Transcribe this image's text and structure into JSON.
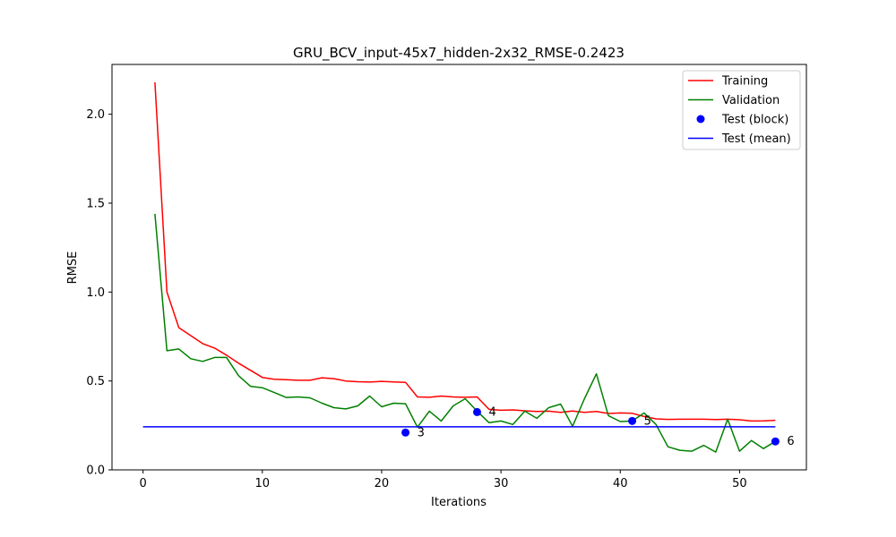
{
  "chart_data": {
    "type": "line",
    "title": "GRU_BCV_input-45x7_hidden-2x32_RMSE-0.2423",
    "xlabel": "Iterations",
    "ylabel": "RMSE",
    "xlim": [
      -2.6,
      55.6
    ],
    "ylim": [
      0,
      2.28
    ],
    "xticks": [
      0,
      10,
      20,
      30,
      40,
      50
    ],
    "xtick_labels": [
      "0",
      "10",
      "20",
      "30",
      "40",
      "50"
    ],
    "yticks": [
      0.0,
      0.5,
      1.0,
      1.5,
      2.0
    ],
    "ytick_labels": [
      "0.0",
      "0.5",
      "1.0",
      "1.5",
      "2.0"
    ],
    "grid": false,
    "legend_position": "top-right",
    "series": [
      {
        "name": "Training",
        "color": "#ff0000",
        "kind": "line",
        "x": [
          1,
          2,
          3,
          4,
          5,
          6,
          7,
          8,
          9,
          10,
          11,
          12,
          13,
          14,
          15,
          16,
          17,
          18,
          19,
          20,
          21,
          22,
          23,
          24,
          25,
          26,
          27,
          28,
          29,
          30,
          31,
          32,
          33,
          34,
          35,
          36,
          37,
          38,
          39,
          40,
          41,
          42,
          43,
          44,
          45,
          46,
          47,
          48,
          49,
          50,
          51,
          52,
          53
        ],
        "y": [
          2.18,
          1.0,
          0.8,
          0.755,
          0.71,
          0.685,
          0.645,
          0.6,
          0.56,
          0.52,
          0.51,
          0.507,
          0.504,
          0.504,
          0.518,
          0.513,
          0.5,
          0.496,
          0.494,
          0.498,
          0.495,
          0.492,
          0.41,
          0.408,
          0.415,
          0.41,
          0.408,
          0.41,
          0.34,
          0.335,
          0.337,
          0.332,
          0.328,
          0.33,
          0.323,
          0.331,
          0.323,
          0.328,
          0.317,
          0.32,
          0.318,
          0.3,
          0.287,
          0.284,
          0.285,
          0.285,
          0.285,
          0.283,
          0.285,
          0.282,
          0.275,
          0.276,
          0.279
        ]
      },
      {
        "name": "Validation",
        "color": "#008000",
        "kind": "line",
        "x": [
          1,
          2,
          3,
          4,
          5,
          6,
          7,
          8,
          9,
          10,
          11,
          12,
          13,
          14,
          15,
          16,
          17,
          18,
          19,
          20,
          21,
          22,
          23,
          24,
          25,
          26,
          27,
          28,
          29,
          30,
          31,
          32,
          33,
          34,
          35,
          36,
          37,
          38,
          39,
          40,
          41,
          42,
          43,
          44,
          45,
          46,
          47,
          48,
          49,
          50,
          51,
          52,
          53
        ],
        "y": [
          1.44,
          0.67,
          0.68,
          0.625,
          0.61,
          0.632,
          0.632,
          0.53,
          0.47,
          0.462,
          0.435,
          0.407,
          0.41,
          0.405,
          0.375,
          0.35,
          0.343,
          0.36,
          0.415,
          0.355,
          0.375,
          0.372,
          0.24,
          0.33,
          0.275,
          0.36,
          0.4,
          0.33,
          0.265,
          0.275,
          0.255,
          0.33,
          0.29,
          0.35,
          0.37,
          0.245,
          0.4,
          0.54,
          0.305,
          0.272,
          0.275,
          0.32,
          0.255,
          0.13,
          0.11,
          0.105,
          0.138,
          0.1,
          0.285,
          0.105,
          0.165,
          0.12,
          0.16
        ]
      },
      {
        "name": "Test (block)",
        "color": "#0000ff",
        "kind": "points",
        "x": [
          22,
          28,
          41,
          53
        ],
        "y": [
          0.21,
          0.325,
          0.275,
          0.16
        ],
        "labels": [
          "3",
          "4",
          "5",
          "6"
        ]
      },
      {
        "name": "Test (mean)",
        "color": "#0000ff",
        "kind": "hline",
        "x": [
          0,
          53
        ],
        "y": [
          0.2423,
          0.2423
        ]
      }
    ]
  }
}
